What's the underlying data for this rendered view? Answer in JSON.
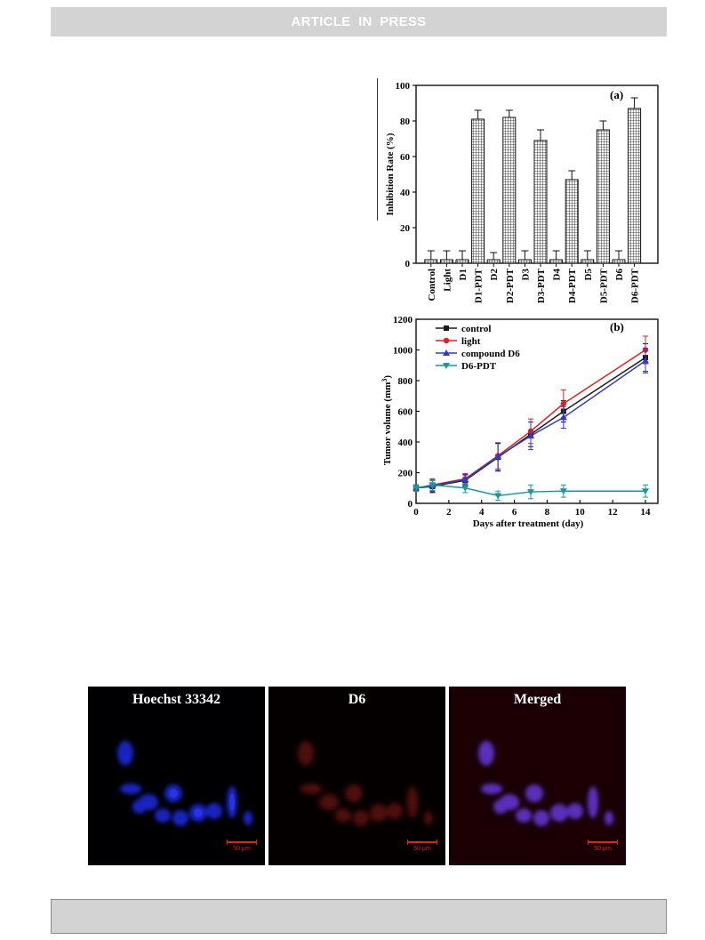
{
  "header": {
    "banner": "ARTICLE IN PRESS"
  },
  "chart_data": [
    {
      "type": "bar",
      "panel_label": "(a)",
      "ylabel": "Inhibition Rate (%)",
      "ylim": [
        0,
        100
      ],
      "yticks": [
        0,
        20,
        40,
        60,
        80,
        100
      ],
      "categories": [
        "Control",
        "Light",
        "D1",
        "D1-PDT",
        "D2",
        "D2-PDT",
        "D3",
        "D3-PDT",
        "D4",
        "D4-PDT",
        "D5",
        "D5-PDT",
        "D6",
        "D6-PDT"
      ],
      "values": [
        2,
        2,
        2,
        81,
        2,
        82,
        2,
        69,
        2,
        47,
        2,
        75,
        2,
        87
      ],
      "errors": [
        5,
        5,
        5,
        5,
        4,
        4,
        5,
        6,
        5,
        5,
        5,
        5,
        5,
        6
      ],
      "bar_pattern": "crosshatch"
    },
    {
      "type": "line",
      "panel_label": "(b)",
      "xlabel": "Days after treatment (day)",
      "ylabel": "Tumor volume (mm",
      "ylabel_sup": "3",
      "ylabel_end": ")",
      "xlim": [
        0,
        14
      ],
      "ylim": [
        0,
        1200
      ],
      "xticks": [
        0,
        2,
        4,
        6,
        8,
        10,
        12,
        14
      ],
      "yticks": [
        0,
        200,
        400,
        600,
        800,
        1000,
        1200
      ],
      "x": [
        0,
        1,
        3,
        5,
        7,
        9,
        14
      ],
      "legend_position": "top-left",
      "series": [
        {
          "name": "control",
          "color": "#1a1a1a",
          "marker": "square",
          "values": [
            100,
            110,
            150,
            300,
            450,
            600,
            950
          ],
          "errors": [
            20,
            40,
            35,
            90,
            80,
            70,
            90
          ]
        },
        {
          "name": "light",
          "color": "#e02020",
          "marker": "circle",
          "values": [
            100,
            120,
            160,
            310,
            470,
            650,
            1000
          ],
          "errors": [
            20,
            40,
            35,
            85,
            80,
            90,
            90
          ]
        },
        {
          "name": "compound D6",
          "color": "#2b3bd0",
          "marker": "triangle-up",
          "values": [
            100,
            115,
            155,
            305,
            440,
            560,
            930
          ],
          "errors": [
            20,
            40,
            35,
            90,
            90,
            70,
            80
          ]
        },
        {
          "name": "D6-PDT",
          "color": "#179a9a",
          "marker": "triangle-down",
          "values": [
            100,
            120,
            100,
            50,
            75,
            80,
            80
          ],
          "errors": [
            20,
            35,
            30,
            30,
            45,
            40,
            40
          ]
        }
      ]
    }
  ],
  "microscopy": {
    "panels": [
      {
        "title": "Hoechst 33342",
        "scale_label": "50 μm",
        "tint": "#3340ff"
      },
      {
        "title": "D6",
        "scale_label": "50 μm",
        "tint": "#c0261c"
      },
      {
        "title": "Merged",
        "scale_label": "50 μm",
        "tint": "#7a4aff"
      }
    ]
  }
}
